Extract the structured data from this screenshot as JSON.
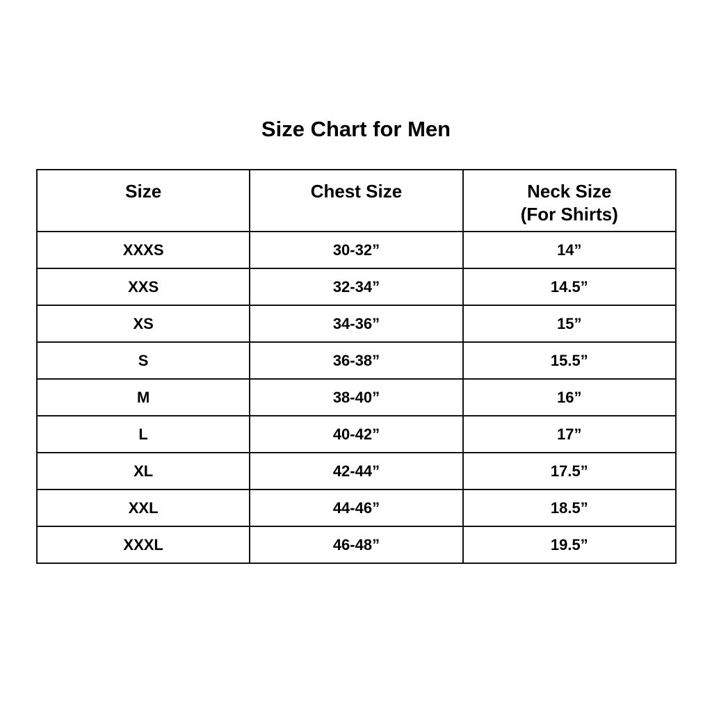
{
  "title": "Size Chart for Men",
  "headers": {
    "size": "Size",
    "chest": "Chest Size",
    "neck": "Neck Size",
    "neck_note": "(For Shirts)"
  },
  "rows": [
    {
      "size": "XXXS",
      "chest": "30-32”",
      "neck": "14”"
    },
    {
      "size": "XXS",
      "chest": "32-34”",
      "neck": "14.5”"
    },
    {
      "size": "XS",
      "chest": "34-36”",
      "neck": "15”"
    },
    {
      "size": "S",
      "chest": "36-38”",
      "neck": "15.5”"
    },
    {
      "size": "M",
      "chest": "38-40”",
      "neck": "16”"
    },
    {
      "size": "L",
      "chest": "40-42”",
      "neck": "17”"
    },
    {
      "size": "XL",
      "chest": "42-44”",
      "neck": "17.5”"
    },
    {
      "size": "XXL",
      "chest": "44-46”",
      "neck": "18.5”"
    },
    {
      "size": "XXXL",
      "chest": "46-48”",
      "neck": "19.5”"
    }
  ]
}
